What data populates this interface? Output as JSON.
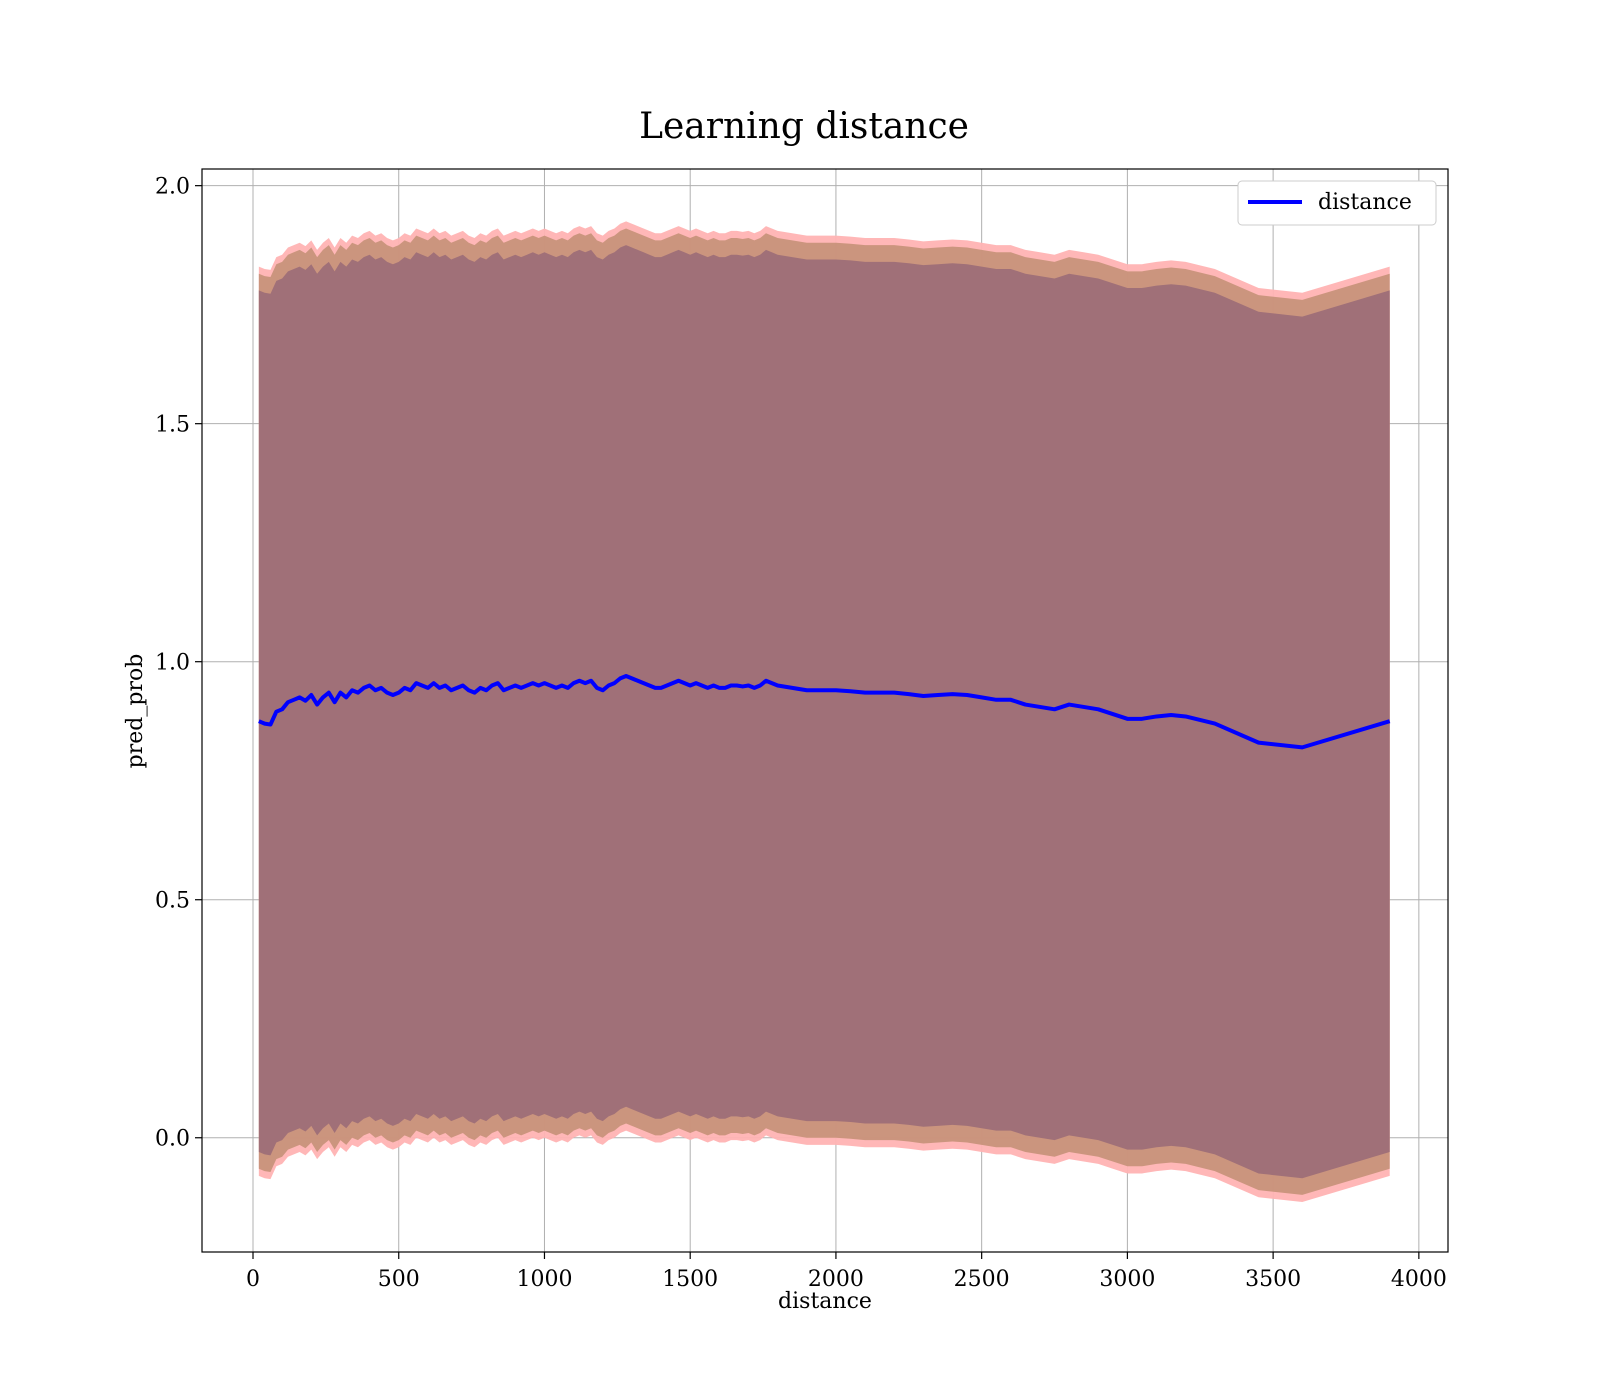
{
  "chart_data": {
    "type": "line",
    "title": "Learning distance",
    "xlabel": "distance",
    "ylabel": "pred_prob",
    "xlim": [
      -175,
      4100
    ],
    "ylim": [
      -0.24,
      2.035
    ],
    "grid": true,
    "legend_position": "top-right",
    "x_ticks": [
      "0",
      "500",
      "1000",
      "1500",
      "2000",
      "2500",
      "3000",
      "3500",
      "4000"
    ],
    "x_tick_values": [
      0,
      500,
      1000,
      1500,
      2000,
      2500,
      3000,
      3500,
      4000
    ],
    "y_ticks": [
      "0.0",
      "0.5",
      "1.0",
      "1.5",
      "2.0"
    ],
    "y_tick_values": [
      0.0,
      0.5,
      1.0,
      1.5,
      2.0
    ],
    "colors": {
      "line": "#0000ff",
      "band_outer": "#ffb3b3",
      "band_middle": "#c8927a",
      "band_inner": "#a07078"
    },
    "series": [
      {
        "name": "distance",
        "x": [
          20,
          40,
          60,
          80,
          100,
          120,
          140,
          160,
          180,
          200,
          220,
          240,
          260,
          280,
          300,
          320,
          340,
          360,
          380,
          400,
          420,
          440,
          460,
          480,
          500,
          520,
          540,
          560,
          580,
          600,
          620,
          640,
          660,
          680,
          700,
          720,
          740,
          760,
          780,
          800,
          820,
          840,
          860,
          880,
          900,
          920,
          940,
          960,
          980,
          1000,
          1020,
          1040,
          1060,
          1080,
          1100,
          1120,
          1140,
          1160,
          1180,
          1200,
          1220,
          1240,
          1260,
          1280,
          1300,
          1320,
          1340,
          1360,
          1380,
          1400,
          1420,
          1440,
          1460,
          1480,
          1500,
          1520,
          1540,
          1560,
          1580,
          1600,
          1620,
          1640,
          1660,
          1680,
          1700,
          1720,
          1740,
          1760,
          1780,
          1800,
          1850,
          1900,
          1950,
          2000,
          2050,
          2100,
          2150,
          2200,
          2250,
          2300,
          2350,
          2400,
          2450,
          2500,
          2550,
          2600,
          2650,
          2700,
          2750,
          2800,
          2850,
          2900,
          2950,
          3000,
          3050,
          3100,
          3150,
          3200,
          3300,
          3450,
          3600,
          3900
        ],
        "y": [
          0.875,
          0.87,
          0.868,
          0.895,
          0.9,
          0.915,
          0.92,
          0.925,
          0.918,
          0.93,
          0.91,
          0.925,
          0.935,
          0.915,
          0.935,
          0.925,
          0.94,
          0.935,
          0.945,
          0.95,
          0.94,
          0.945,
          0.935,
          0.93,
          0.935,
          0.945,
          0.94,
          0.955,
          0.95,
          0.945,
          0.955,
          0.945,
          0.95,
          0.94,
          0.945,
          0.95,
          0.94,
          0.935,
          0.945,
          0.94,
          0.95,
          0.955,
          0.94,
          0.945,
          0.95,
          0.945,
          0.95,
          0.955,
          0.95,
          0.955,
          0.95,
          0.945,
          0.95,
          0.945,
          0.955,
          0.96,
          0.955,
          0.96,
          0.945,
          0.94,
          0.95,
          0.955,
          0.965,
          0.97,
          0.965,
          0.96,
          0.955,
          0.95,
          0.945,
          0.945,
          0.95,
          0.955,
          0.96,
          0.955,
          0.95,
          0.955,
          0.95,
          0.945,
          0.95,
          0.945,
          0.945,
          0.95,
          0.95,
          0.948,
          0.95,
          0.945,
          0.95,
          0.96,
          0.955,
          0.95,
          0.945,
          0.94,
          0.94,
          0.94,
          0.938,
          0.935,
          0.935,
          0.935,
          0.932,
          0.928,
          0.93,
          0.932,
          0.93,
          0.925,
          0.92,
          0.92,
          0.91,
          0.905,
          0.9,
          0.91,
          0.905,
          0.9,
          0.89,
          0.88,
          0.88,
          0.885,
          0.888,
          0.885,
          0.87,
          0.83,
          0.82,
          0.875
        ]
      }
    ],
    "bands": [
      {
        "label": "outer",
        "upper_offset": 0.955,
        "lower_offset": -0.955
      },
      {
        "label": "middle",
        "upper_offset": 0.94,
        "lower_offset": -0.94
      },
      {
        "label": "inner",
        "upper_offset": 0.905,
        "lower_offset": -0.905
      }
    ],
    "legend": [
      "distance"
    ]
  }
}
